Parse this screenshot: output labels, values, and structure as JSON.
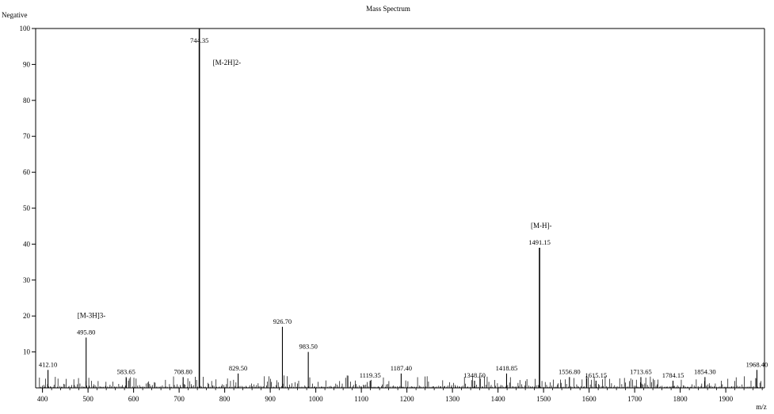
{
  "chart_data": {
    "type": "bar",
    "title": "Mass Spectrum",
    "mode": "Negative",
    "xlabel": "m/z",
    "ylabel": "",
    "xlim": [
      385,
      1985
    ],
    "ylim": [
      0,
      100
    ],
    "xticks": [
      400,
      500,
      600,
      700,
      800,
      900,
      1000,
      1100,
      1200,
      1300,
      1400,
      1500,
      1600,
      1700,
      1800,
      1900
    ],
    "yticks": [
      10,
      20,
      30,
      40,
      50,
      60,
      70,
      80,
      90,
      100
    ],
    "grid": false,
    "colors": {
      "peak": "#000000",
      "axis": "#000000",
      "background": "#ffffff"
    },
    "peaks": [
      {
        "mz": 412.1,
        "label": "412.10",
        "intensity": 5
      },
      {
        "mz": 495.8,
        "label": "495.80",
        "intensity": 14
      },
      {
        "mz": 583.65,
        "label": "583.65",
        "intensity": 3
      },
      {
        "mz": 708.8,
        "label": "708.80",
        "intensity": 3
      },
      {
        "mz": 744.35,
        "label": "744.35",
        "intensity": 100
      },
      {
        "mz": 829.5,
        "label": "829.50",
        "intensity": 4
      },
      {
        "mz": 926.7,
        "label": "926.70",
        "intensity": 17
      },
      {
        "mz": 983.5,
        "label": "983.50",
        "intensity": 10
      },
      {
        "mz": 1119.35,
        "label": "1119.35",
        "intensity": 2
      },
      {
        "mz": 1187.4,
        "label": "1187.40",
        "intensity": 4
      },
      {
        "mz": 1348.5,
        "label": "1348.50",
        "intensity": 2
      },
      {
        "mz": 1418.85,
        "label": "1418.85",
        "intensity": 4
      },
      {
        "mz": 1491.15,
        "label": "1491.15",
        "intensity": 39
      },
      {
        "mz": 1556.8,
        "label": "1556.80",
        "intensity": 3
      },
      {
        "mz": 1615.15,
        "label": "1615.15",
        "intensity": 2
      },
      {
        "mz": 1713.65,
        "label": "1713.65",
        "intensity": 3
      },
      {
        "mz": 1784.15,
        "label": "1784.15",
        "intensity": 2
      },
      {
        "mz": 1854.3,
        "label": "1854.30",
        "intensity": 3
      },
      {
        "mz": 1968.4,
        "label": "1968.40",
        "intensity": 5
      }
    ],
    "annotations": [
      {
        "text": "[M-3H]3-",
        "peak_mz": 495.8
      },
      {
        "text": "[M-2H]2-",
        "peak_mz": 744.35
      },
      {
        "text": "[M-H]-",
        "peak_mz": 1491.15
      }
    ]
  }
}
